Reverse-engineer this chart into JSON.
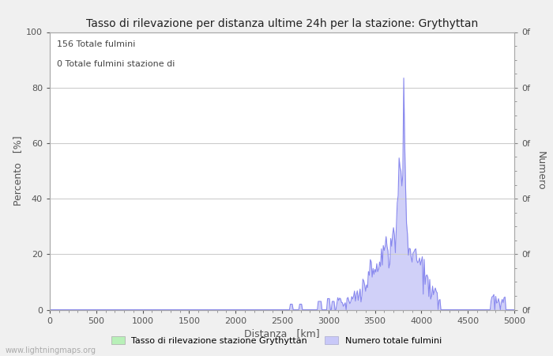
{
  "title": "Tasso di rilevazione per distanza ultime 24h per la stazione: Grythyttan",
  "xlabel": "Distanza   [km]",
  "ylabel_left": "Percento   [%]",
  "ylabel_right": "Numero",
  "annotation_line1": "156 Totale fulmini",
  "annotation_line2": "0 Totale fulmini stazione di",
  "legend_label1": "Tasso di rilevazione stazione Grythyttan",
  "legend_label2": "Numero totale fulmini",
  "legend_color1": "#b8f0b8",
  "legend_color2": "#c8c8f8",
  "watermark": "www.lightningmaps.org",
  "xlim": [
    0,
    5000
  ],
  "ylim": [
    0,
    100
  ],
  "xticks": [
    0,
    500,
    1000,
    1500,
    2000,
    2500,
    3000,
    3500,
    4000,
    4500,
    5000
  ],
  "yticks_left": [
    0,
    20,
    40,
    60,
    80,
    100
  ],
  "background_color": "#f0f0f0",
  "plot_bg_color": "#ffffff",
  "line_color": "#8888ee",
  "fill_color": "#d0d0f8",
  "grid_color": "#cccccc",
  "spine_color": "#aaaaaa"
}
